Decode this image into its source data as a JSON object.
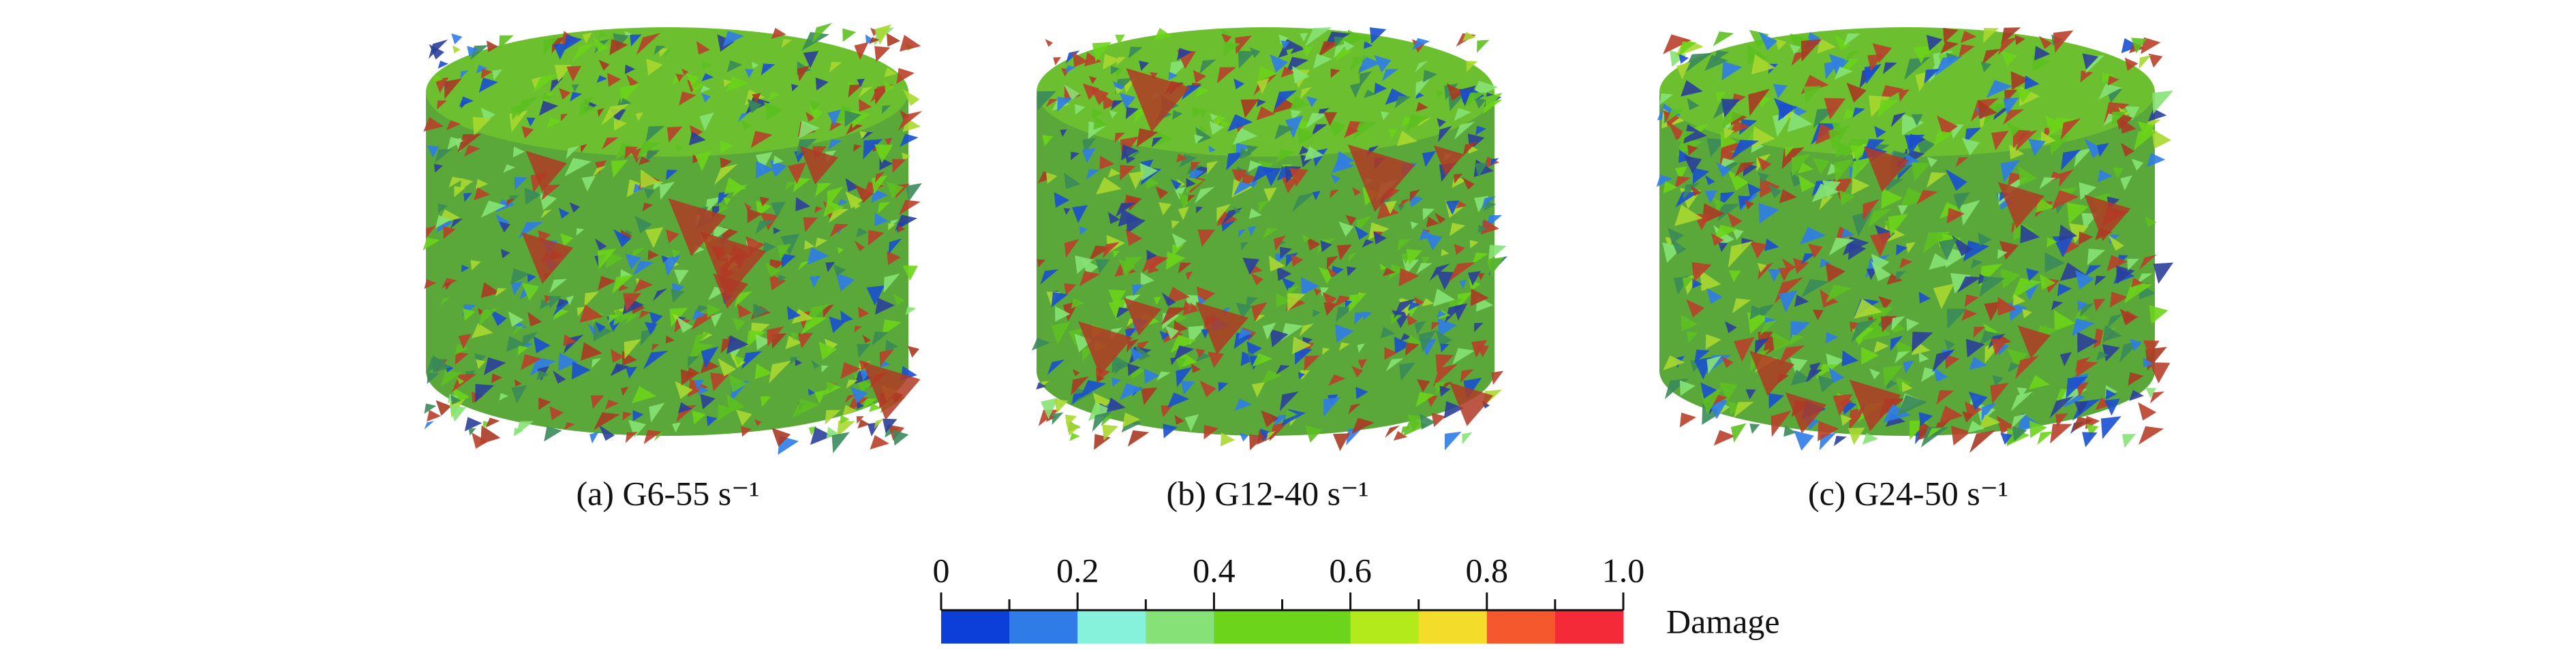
{
  "panels": [
    {
      "caption": "(a) G6-55 s⁻¹"
    },
    {
      "caption": "(b) G12-40 s⁻¹"
    },
    {
      "caption": "(c) G24-50 s⁻¹"
    }
  ],
  "colorbar": {
    "label": "Damage",
    "lim": [
      0,
      1
    ],
    "ticks": [
      0,
      0.2,
      0.4,
      0.6,
      0.8,
      {
        "value": 1,
        "label": "1.0"
      }
    ],
    "minor_ticks": [
      0.1,
      0.3,
      0.5,
      0.7,
      0.9
    ],
    "colors": [
      "#0b3fd8",
      "#2f7ce8",
      "#86f2dc",
      "#86e276",
      "#6cd41a",
      "#6cd41a",
      "#b2ea1c",
      "#f4dc2a",
      "#f4582c",
      "#f42a38"
    ]
  }
}
